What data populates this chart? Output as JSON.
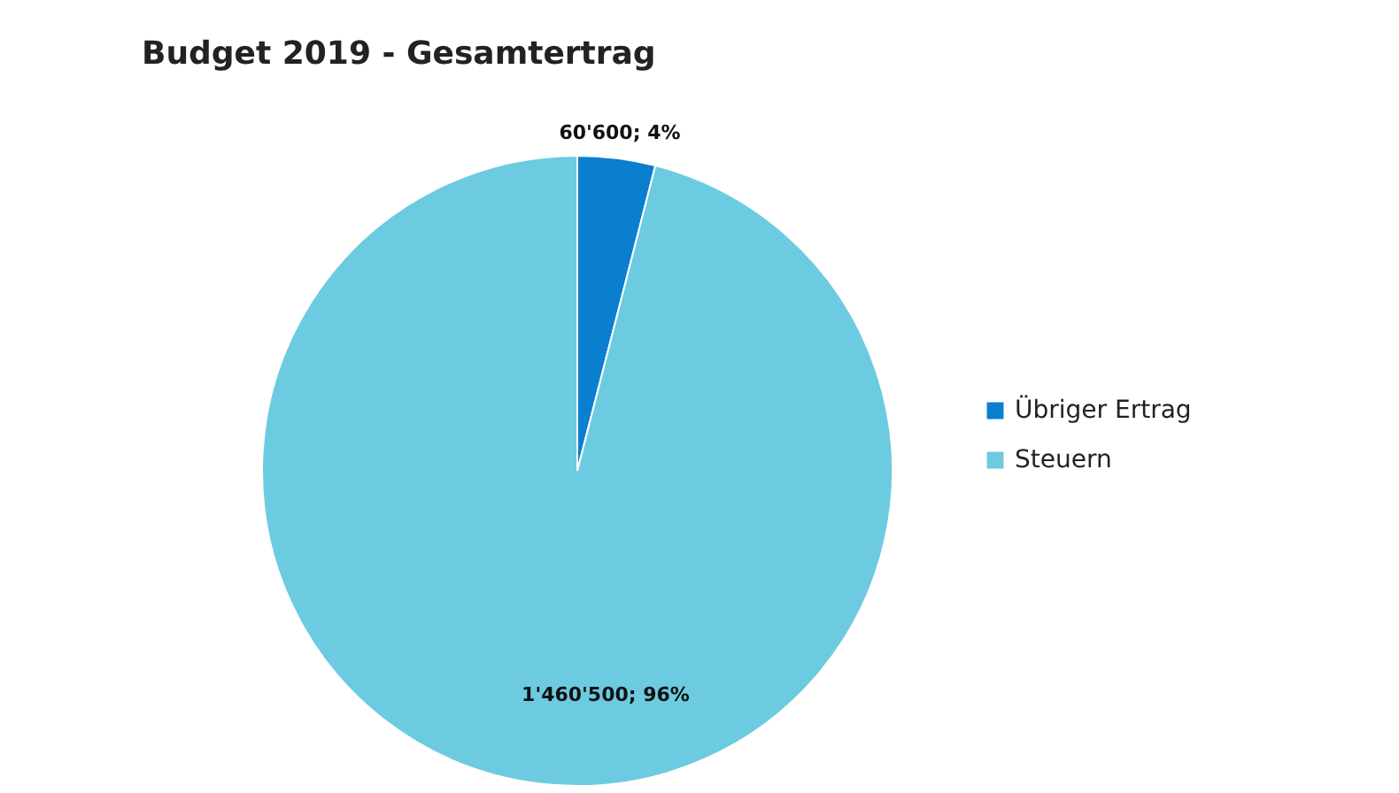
{
  "chart_data": {
    "type": "pie",
    "title": "Budget 2019 - Gesamtertrag",
    "categories": [
      "Übriger Ertrag",
      "Steuern"
    ],
    "values": [
      60600,
      1460500
    ],
    "colors": [
      "#0a7fd0",
      "#6ccbe0"
    ],
    "value_labels": [
      "60'600; 4%",
      "1'460'500; 96%"
    ],
    "legend": "right"
  }
}
